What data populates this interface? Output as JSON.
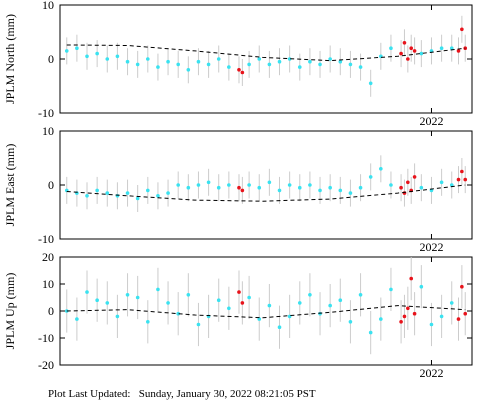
{
  "chart_data": [
    {
      "type": "scatter",
      "ylabel": "JPLM North (mm)",
      "xlim": [
        2020.9,
        2022.12
      ],
      "xticks": [
        2022
      ],
      "ylim": [
        -10,
        10
      ],
      "yticks": [
        -10,
        0,
        10
      ],
      "series": [
        {
          "color": "#3ae2f0",
          "error": 2.5,
          "x": [
            2020.92,
            2020.95,
            2020.98,
            2021.01,
            2021.04,
            2021.07,
            2021.1,
            2021.13,
            2021.16,
            2021.19,
            2021.22,
            2021.25,
            2021.28,
            2021.31,
            2021.34,
            2021.37,
            2021.4,
            2021.46,
            2021.49,
            2021.52,
            2021.55,
            2021.58,
            2021.61,
            2021.64,
            2021.67,
            2021.7,
            2021.73,
            2021.76,
            2021.79,
            2021.82,
            2021.85,
            2021.88,
            2021.97,
            2022.0,
            2022.03,
            2022.06
          ],
          "values": [
            1.5,
            2,
            0.5,
            1,
            0,
            0.5,
            -0.5,
            -1,
            0,
            -1.5,
            -0.5,
            -1,
            -2,
            -0.5,
            -1,
            0,
            -1.5,
            -1,
            0,
            -1,
            -0.5,
            0,
            -1.5,
            -0.5,
            -1,
            0,
            -0.5,
            -1,
            -1.5,
            -4.5,
            0.5,
            2,
            1,
            1.5,
            2,
            2
          ]
        },
        {
          "color": "#e8131b",
          "error": 2.5,
          "x": [
            2021.43,
            2021.44,
            2021.91,
            2021.92,
            2021.93,
            2021.94,
            2021.95,
            2022.08,
            2022.09,
            2022.1
          ],
          "values": [
            -2,
            -2.5,
            1,
            3,
            0,
            2,
            1.5,
            1.5,
            5.5,
            2
          ]
        }
      ],
      "trend": {
        "color": "#000000",
        "x": [
          2020.92,
          2021.1,
          2021.3,
          2021.5,
          2021.7,
          2021.9,
          2022.1
        ],
        "values": [
          2.6,
          2.5,
          1.5,
          0.3,
          -0.3,
          0.5,
          2.0
        ]
      }
    },
    {
      "type": "scatter",
      "ylabel": "JPLM East (mm)",
      "xlim": [
        2020.9,
        2022.12
      ],
      "xticks": [
        2022
      ],
      "ylim": [
        -10,
        10
      ],
      "yticks": [
        -10,
        0,
        10
      ],
      "series": [
        {
          "color": "#3ae2f0",
          "error": 2.5,
          "x": [
            2020.92,
            2020.95,
            2020.98,
            2021.01,
            2021.04,
            2021.07,
            2021.1,
            2021.13,
            2021.16,
            2021.19,
            2021.22,
            2021.25,
            2021.28,
            2021.31,
            2021.34,
            2021.37,
            2021.4,
            2021.46,
            2021.49,
            2021.52,
            2021.55,
            2021.58,
            2021.61,
            2021.64,
            2021.67,
            2021.7,
            2021.73,
            2021.76,
            2021.79,
            2021.82,
            2021.85,
            2021.88,
            2021.97,
            2022.0,
            2022.03,
            2022.06
          ],
          "values": [
            -1,
            -1.5,
            -2,
            -1,
            -1.5,
            -2,
            -1.5,
            -2.5,
            -1,
            -2,
            -1.5,
            0,
            -0.5,
            0,
            0.5,
            -0.5,
            0,
            0,
            -0.5,
            0.5,
            -1,
            0,
            -0.5,
            0,
            -1,
            -0.5,
            -1,
            -1.5,
            -0.5,
            1.5,
            3,
            0,
            -0.5,
            -1,
            0.5,
            0
          ]
        },
        {
          "color": "#e8131b",
          "error": 2.5,
          "x": [
            2021.43,
            2021.44,
            2021.91,
            2021.92,
            2021.93,
            2021.94,
            2021.95,
            2022.08,
            2022.09,
            2022.1
          ],
          "values": [
            -0.5,
            -1,
            -0.5,
            -1.5,
            0.5,
            -1,
            1.5,
            1,
            2.5,
            1
          ]
        }
      ],
      "trend": {
        "color": "#000000",
        "x": [
          2020.92,
          2021.1,
          2021.3,
          2021.5,
          2021.7,
          2021.9,
          2022.1
        ],
        "values": [
          -1.2,
          -2,
          -2.8,
          -3,
          -2.6,
          -1.5,
          0
        ]
      }
    },
    {
      "type": "scatter",
      "ylabel": "JPLM Up (mm)",
      "xlim": [
        2020.9,
        2022.12
      ],
      "xticks": [
        2022
      ],
      "ylim": [
        -20,
        20
      ],
      "yticks": [
        -20,
        -10,
        0,
        10,
        20
      ],
      "series": [
        {
          "color": "#3ae2f0",
          "error": 8,
          "x": [
            2020.92,
            2020.95,
            2020.98,
            2021.01,
            2021.04,
            2021.07,
            2021.1,
            2021.13,
            2021.16,
            2021.19,
            2021.22,
            2021.25,
            2021.28,
            2021.31,
            2021.34,
            2021.37,
            2021.4,
            2021.46,
            2021.49,
            2021.52,
            2021.55,
            2021.58,
            2021.61,
            2021.64,
            2021.67,
            2021.7,
            2021.73,
            2021.76,
            2021.79,
            2021.82,
            2021.85,
            2021.88,
            2021.97,
            2022.0,
            2022.03,
            2022.06
          ],
          "values": [
            0,
            -3,
            7,
            4,
            3,
            -2,
            6,
            5,
            -4,
            8,
            3,
            -1,
            6,
            -5,
            -2,
            4,
            1,
            5,
            -3,
            2,
            -6,
            -2,
            3,
            6,
            -1,
            2,
            4,
            -4,
            6,
            -8,
            -3,
            8,
            9,
            -5,
            -2,
            3
          ]
        },
        {
          "color": "#e8131b",
          "error": 8,
          "x": [
            2021.43,
            2021.44,
            2021.91,
            2021.92,
            2021.93,
            2021.94,
            2021.95,
            2022.08,
            2022.09,
            2022.1
          ],
          "values": [
            7,
            3,
            -4,
            -2,
            1,
            12,
            -1,
            -3,
            9,
            -1
          ]
        }
      ],
      "trend": {
        "color": "#000000",
        "x": [
          2020.92,
          2021.1,
          2021.3,
          2021.5,
          2021.7,
          2021.9,
          2022.1
        ],
        "values": [
          0,
          0.5,
          -1.5,
          -2.5,
          -0.5,
          2,
          0.5
        ]
      }
    }
  ],
  "footer": "Plot Last Updated:   Sunday, January 30, 2022 08:21:05 PST"
}
